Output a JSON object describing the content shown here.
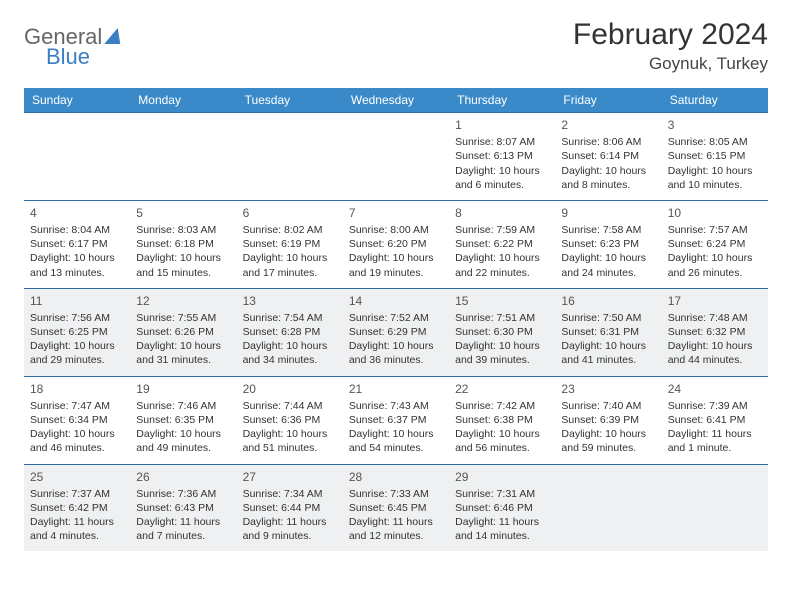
{
  "logo": {
    "text1": "General",
    "text2": "Blue"
  },
  "title": "February 2024",
  "location": "Goynuk, Turkey",
  "colors": {
    "header_bg": "#3a8ac9",
    "border": "#2a6ba8",
    "shade": "#eef0f2"
  },
  "days_of_week": [
    "Sunday",
    "Monday",
    "Tuesday",
    "Wednesday",
    "Thursday",
    "Friday",
    "Saturday"
  ],
  "weeks": [
    [
      null,
      null,
      null,
      null,
      {
        "n": "1",
        "sr": "8:07 AM",
        "ss": "6:13 PM",
        "dl": "10 hours and 6 minutes."
      },
      {
        "n": "2",
        "sr": "8:06 AM",
        "ss": "6:14 PM",
        "dl": "10 hours and 8 minutes."
      },
      {
        "n": "3",
        "sr": "8:05 AM",
        "ss": "6:15 PM",
        "dl": "10 hours and 10 minutes."
      }
    ],
    [
      {
        "n": "4",
        "sr": "8:04 AM",
        "ss": "6:17 PM",
        "dl": "10 hours and 13 minutes."
      },
      {
        "n": "5",
        "sr": "8:03 AM",
        "ss": "6:18 PM",
        "dl": "10 hours and 15 minutes."
      },
      {
        "n": "6",
        "sr": "8:02 AM",
        "ss": "6:19 PM",
        "dl": "10 hours and 17 minutes."
      },
      {
        "n": "7",
        "sr": "8:00 AM",
        "ss": "6:20 PM",
        "dl": "10 hours and 19 minutes."
      },
      {
        "n": "8",
        "sr": "7:59 AM",
        "ss": "6:22 PM",
        "dl": "10 hours and 22 minutes."
      },
      {
        "n": "9",
        "sr": "7:58 AM",
        "ss": "6:23 PM",
        "dl": "10 hours and 24 minutes."
      },
      {
        "n": "10",
        "sr": "7:57 AM",
        "ss": "6:24 PM",
        "dl": "10 hours and 26 minutes."
      }
    ],
    [
      {
        "n": "11",
        "sr": "7:56 AM",
        "ss": "6:25 PM",
        "dl": "10 hours and 29 minutes."
      },
      {
        "n": "12",
        "sr": "7:55 AM",
        "ss": "6:26 PM",
        "dl": "10 hours and 31 minutes."
      },
      {
        "n": "13",
        "sr": "7:54 AM",
        "ss": "6:28 PM",
        "dl": "10 hours and 34 minutes."
      },
      {
        "n": "14",
        "sr": "7:52 AM",
        "ss": "6:29 PM",
        "dl": "10 hours and 36 minutes."
      },
      {
        "n": "15",
        "sr": "7:51 AM",
        "ss": "6:30 PM",
        "dl": "10 hours and 39 minutes."
      },
      {
        "n": "16",
        "sr": "7:50 AM",
        "ss": "6:31 PM",
        "dl": "10 hours and 41 minutes."
      },
      {
        "n": "17",
        "sr": "7:48 AM",
        "ss": "6:32 PM",
        "dl": "10 hours and 44 minutes."
      }
    ],
    [
      {
        "n": "18",
        "sr": "7:47 AM",
        "ss": "6:34 PM",
        "dl": "10 hours and 46 minutes."
      },
      {
        "n": "19",
        "sr": "7:46 AM",
        "ss": "6:35 PM",
        "dl": "10 hours and 49 minutes."
      },
      {
        "n": "20",
        "sr": "7:44 AM",
        "ss": "6:36 PM",
        "dl": "10 hours and 51 minutes."
      },
      {
        "n": "21",
        "sr": "7:43 AM",
        "ss": "6:37 PM",
        "dl": "10 hours and 54 minutes."
      },
      {
        "n": "22",
        "sr": "7:42 AM",
        "ss": "6:38 PM",
        "dl": "10 hours and 56 minutes."
      },
      {
        "n": "23",
        "sr": "7:40 AM",
        "ss": "6:39 PM",
        "dl": "10 hours and 59 minutes."
      },
      {
        "n": "24",
        "sr": "7:39 AM",
        "ss": "6:41 PM",
        "dl": "11 hours and 1 minute."
      }
    ],
    [
      {
        "n": "25",
        "sr": "7:37 AM",
        "ss": "6:42 PM",
        "dl": "11 hours and 4 minutes."
      },
      {
        "n": "26",
        "sr": "7:36 AM",
        "ss": "6:43 PM",
        "dl": "11 hours and 7 minutes."
      },
      {
        "n": "27",
        "sr": "7:34 AM",
        "ss": "6:44 PM",
        "dl": "11 hours and 9 minutes."
      },
      {
        "n": "28",
        "sr": "7:33 AM",
        "ss": "6:45 PM",
        "dl": "11 hours and 12 minutes."
      },
      {
        "n": "29",
        "sr": "7:31 AM",
        "ss": "6:46 PM",
        "dl": "11 hours and 14 minutes."
      },
      null,
      null
    ]
  ],
  "labels": {
    "sunrise": "Sunrise: ",
    "sunset": "Sunset: ",
    "daylight": "Daylight: "
  },
  "shaded_rows": [
    2,
    4
  ]
}
